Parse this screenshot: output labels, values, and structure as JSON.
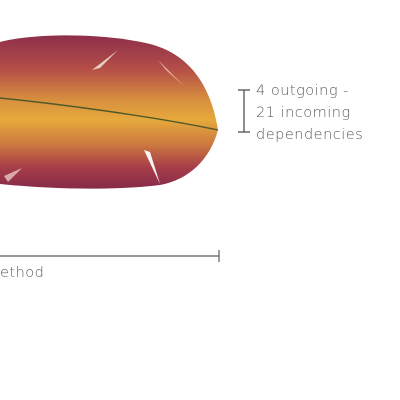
{
  "annotation": {
    "line1": "4 outgoing -",
    "line2": "21 incoming",
    "line3": "dependencies"
  },
  "axis": {
    "label": "ethod"
  },
  "colors": {
    "feather_edge": "#8e2f4a",
    "feather_core": "#e2a23a",
    "shaft": "#4f5a2a",
    "ink": "#5c5c5c"
  }
}
